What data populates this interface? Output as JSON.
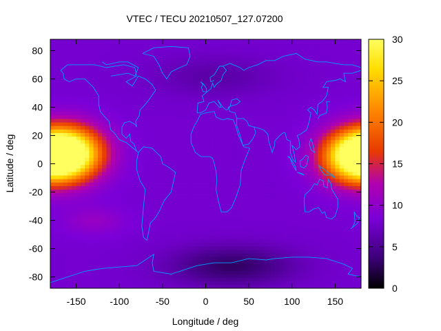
{
  "chart_data": {
    "type": "heatmap",
    "title": "VTEC / TECU 20210507_127.07200",
    "xlabel": "Longitude / deg",
    "ylabel": "Latitude / deg",
    "xlim": [
      -180,
      180
    ],
    "ylim": [
      -88,
      88
    ],
    "x_ticks": [
      -150,
      -100,
      -50,
      0,
      50,
      100,
      150
    ],
    "y_ticks": [
      -80,
      -60,
      -40,
      -20,
      0,
      20,
      40,
      60,
      80
    ],
    "colorbar": {
      "range": [
        0,
        30
      ],
      "ticks": [
        0,
        5,
        10,
        15,
        20,
        25,
        30
      ],
      "colormap": [
        "#000000",
        "#3b0076",
        "#7a00d8",
        "#b000b0",
        "#e83a00",
        "#ff8a00",
        "#ffdd00",
        "#ffff60"
      ]
    },
    "grid": false,
    "coastline_color": "#00a0ff",
    "grid_resolution": {
      "lon_step": 5,
      "lat_step": 2.5
    },
    "hotspots": [
      {
        "lon": -160,
        "lat": 8,
        "peak_vtec": 30
      },
      {
        "lon": 175,
        "lat": 5,
        "peak_vtec": 29
      }
    ],
    "background_vtec": 8,
    "low_regions": [
      {
        "lon": 30,
        "lat": -72,
        "vtec": 3
      },
      {
        "lon": 10,
        "lat": 62,
        "vtec": 6
      }
    ]
  }
}
